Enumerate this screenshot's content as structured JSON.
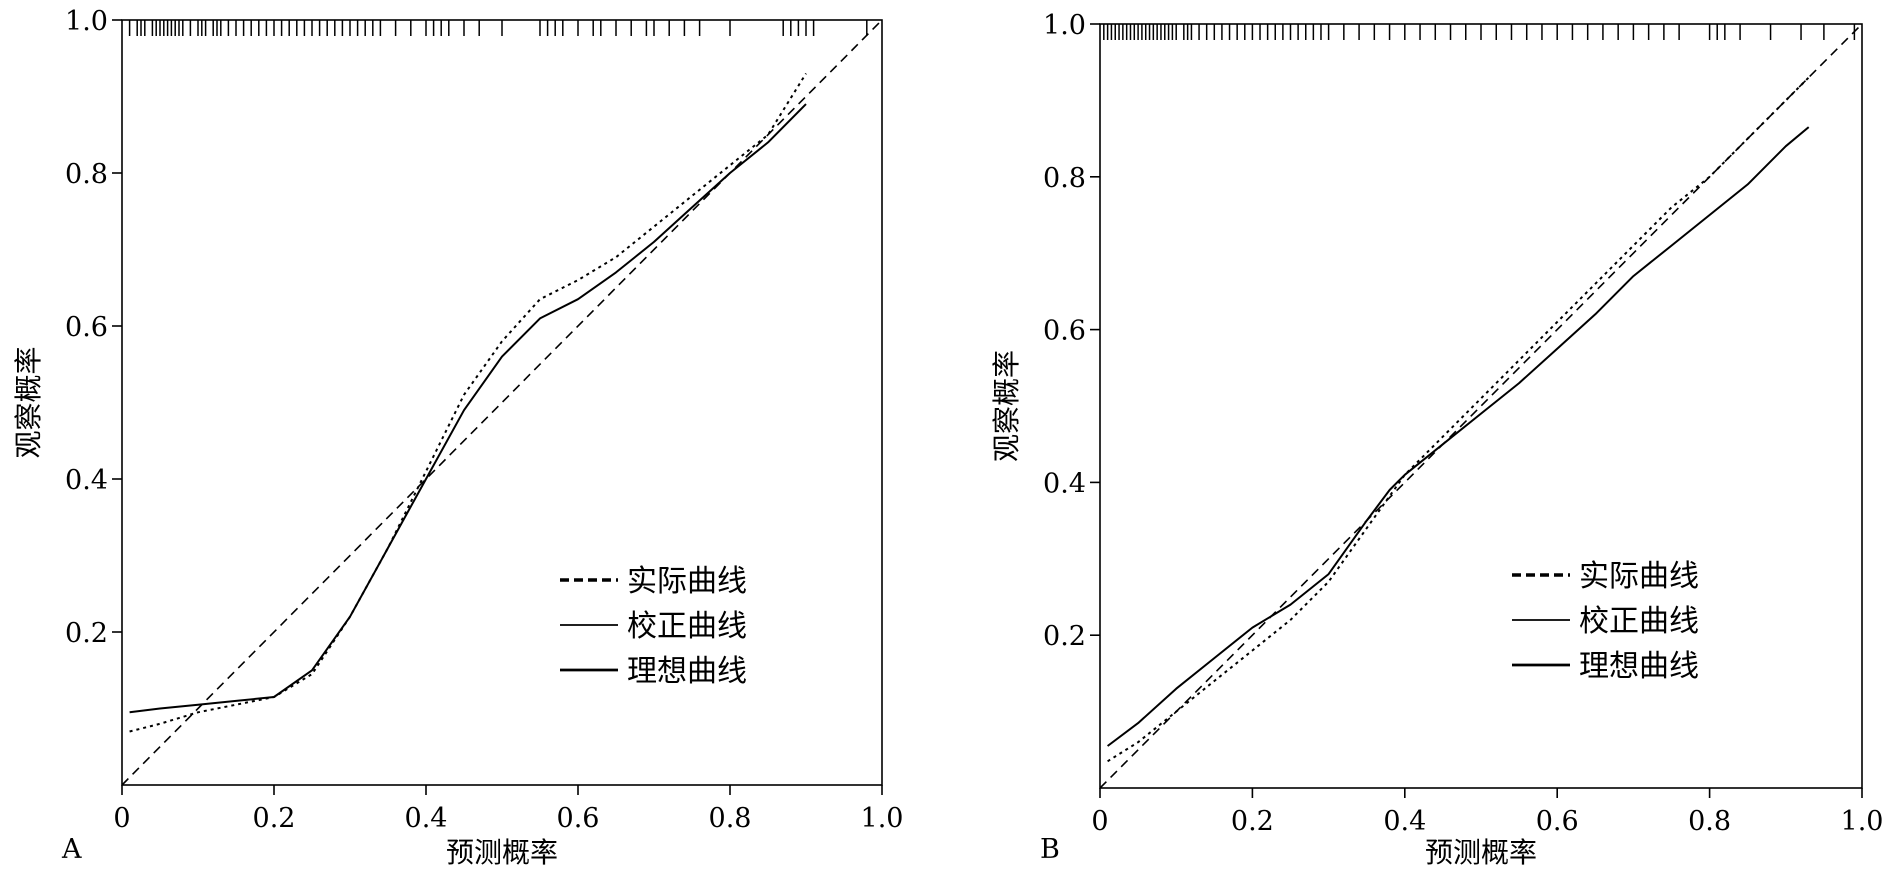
{
  "chart_data": [
    {
      "type": "line",
      "panel_label": "A",
      "xlabel": "预测概率",
      "ylabel": "观察概率",
      "xlim": [
        0,
        1
      ],
      "ylim": [
        0,
        1
      ],
      "x_ticks": [
        "0",
        "0.2",
        "0.4",
        "0.6",
        "0.8",
        "1.0"
      ],
      "y_ticks": [
        "0.2",
        "0.4",
        "0.6",
        "0.8",
        "1.0"
      ],
      "grid": false,
      "legend_position": "bottom-right",
      "series": [
        {
          "name": "实际曲线",
          "style": "dotted",
          "points": [
            [
              0.01,
              0.07
            ],
            [
              0.05,
              0.08
            ],
            [
              0.1,
              0.095
            ],
            [
              0.15,
              0.105
            ],
            [
              0.2,
              0.115
            ],
            [
              0.25,
              0.145
            ],
            [
              0.3,
              0.22
            ],
            [
              0.35,
              0.31
            ],
            [
              0.4,
              0.41
            ],
            [
              0.45,
              0.51
            ],
            [
              0.5,
              0.58
            ],
            [
              0.55,
              0.635
            ],
            [
              0.6,
              0.66
            ],
            [
              0.65,
              0.69
            ],
            [
              0.7,
              0.73
            ],
            [
              0.75,
              0.77
            ],
            [
              0.8,
              0.81
            ],
            [
              0.85,
              0.85
            ],
            [
              0.9,
              0.93
            ]
          ]
        },
        {
          "name": "校正曲线",
          "style": "solid",
          "points": [
            [
              0.01,
              0.095
            ],
            [
              0.05,
              0.1
            ],
            [
              0.1,
              0.105
            ],
            [
              0.15,
              0.11
            ],
            [
              0.2,
              0.115
            ],
            [
              0.25,
              0.15
            ],
            [
              0.3,
              0.22
            ],
            [
              0.35,
              0.31
            ],
            [
              0.4,
              0.4
            ],
            [
              0.45,
              0.49
            ],
            [
              0.5,
              0.56
            ],
            [
              0.55,
              0.61
            ],
            [
              0.6,
              0.635
            ],
            [
              0.65,
              0.67
            ],
            [
              0.7,
              0.71
            ],
            [
              0.75,
              0.755
            ],
            [
              0.8,
              0.8
            ],
            [
              0.85,
              0.84
            ],
            [
              0.9,
              0.89
            ]
          ]
        },
        {
          "name": "理想曲线",
          "style": "dashed",
          "points": [
            [
              0,
              0
            ],
            [
              1,
              1
            ]
          ]
        }
      ],
      "rug_x": [
        0.01,
        0.02,
        0.025,
        0.03,
        0.04,
        0.045,
        0.05,
        0.055,
        0.06,
        0.065,
        0.07,
        0.075,
        0.08,
        0.09,
        0.1,
        0.105,
        0.11,
        0.12,
        0.125,
        0.13,
        0.14,
        0.15,
        0.16,
        0.17,
        0.18,
        0.19,
        0.2,
        0.21,
        0.22,
        0.23,
        0.24,
        0.25,
        0.26,
        0.27,
        0.28,
        0.29,
        0.3,
        0.31,
        0.32,
        0.33,
        0.34,
        0.36,
        0.38,
        0.4,
        0.41,
        0.42,
        0.43,
        0.45,
        0.47,
        0.5,
        0.55,
        0.56,
        0.57,
        0.58,
        0.6,
        0.62,
        0.63,
        0.65,
        0.67,
        0.69,
        0.7,
        0.72,
        0.74,
        0.76,
        0.8,
        0.87,
        0.88,
        0.89,
        0.9,
        0.91,
        0.98
      ]
    },
    {
      "type": "line",
      "panel_label": "B",
      "xlabel": "预测概率",
      "ylabel": "观察概率",
      "xlim": [
        0,
        1
      ],
      "ylim": [
        0,
        1
      ],
      "x_ticks": [
        "0",
        "0.2",
        "0.4",
        "0.6",
        "0.8",
        "1.0"
      ],
      "y_ticks": [
        "0.2",
        "0.4",
        "0.6",
        "0.8",
        "1.0"
      ],
      "grid": false,
      "legend_position": "bottom-right",
      "series": [
        {
          "name": "实际曲线",
          "style": "dotted",
          "points": [
            [
              0.01,
              0.035
            ],
            [
              0.05,
              0.06
            ],
            [
              0.1,
              0.1
            ],
            [
              0.15,
              0.14
            ],
            [
              0.2,
              0.18
            ],
            [
              0.25,
              0.22
            ],
            [
              0.3,
              0.27
            ],
            [
              0.35,
              0.34
            ],
            [
              0.4,
              0.41
            ],
            [
              0.45,
              0.46
            ],
            [
              0.5,
              0.51
            ],
            [
              0.55,
              0.56
            ],
            [
              0.6,
              0.61
            ],
            [
              0.65,
              0.66
            ],
            [
              0.7,
              0.71
            ],
            [
              0.75,
              0.76
            ],
            [
              0.8,
              0.8
            ],
            [
              0.85,
              0.85
            ],
            [
              0.9,
              0.9
            ],
            [
              0.93,
              0.93
            ]
          ]
        },
        {
          "name": "校正曲线",
          "style": "solid",
          "points": [
            [
              0.01,
              0.055
            ],
            [
              0.05,
              0.085
            ],
            [
              0.1,
              0.13
            ],
            [
              0.15,
              0.17
            ],
            [
              0.2,
              0.21
            ],
            [
              0.25,
              0.24
            ],
            [
              0.3,
              0.28
            ],
            [
              0.35,
              0.35
            ],
            [
              0.38,
              0.39
            ],
            [
              0.4,
              0.41
            ],
            [
              0.45,
              0.45
            ],
            [
              0.5,
              0.49
            ],
            [
              0.55,
              0.53
            ],
            [
              0.6,
              0.575
            ],
            [
              0.65,
              0.62
            ],
            [
              0.7,
              0.67
            ],
            [
              0.75,
              0.71
            ],
            [
              0.8,
              0.75
            ],
            [
              0.85,
              0.79
            ],
            [
              0.9,
              0.84
            ],
            [
              0.93,
              0.865
            ]
          ]
        },
        {
          "name": "理想曲线",
          "style": "dashed",
          "points": [
            [
              0,
              0
            ],
            [
              1,
              1
            ]
          ]
        }
      ],
      "rug_x": [
        0.005,
        0.01,
        0.015,
        0.02,
        0.025,
        0.03,
        0.035,
        0.04,
        0.045,
        0.05,
        0.055,
        0.06,
        0.065,
        0.07,
        0.075,
        0.08,
        0.085,
        0.09,
        0.095,
        0.1,
        0.11,
        0.115,
        0.12,
        0.13,
        0.14,
        0.15,
        0.16,
        0.17,
        0.18,
        0.19,
        0.2,
        0.21,
        0.22,
        0.23,
        0.24,
        0.25,
        0.26,
        0.27,
        0.28,
        0.29,
        0.3,
        0.32,
        0.34,
        0.36,
        0.38,
        0.4,
        0.42,
        0.44,
        0.46,
        0.48,
        0.5,
        0.52,
        0.54,
        0.56,
        0.58,
        0.6,
        0.62,
        0.64,
        0.66,
        0.68,
        0.7,
        0.72,
        0.74,
        0.76,
        0.8,
        0.81,
        0.82,
        0.84,
        0.88,
        0.92,
        0.95,
        0.99
      ]
    }
  ]
}
